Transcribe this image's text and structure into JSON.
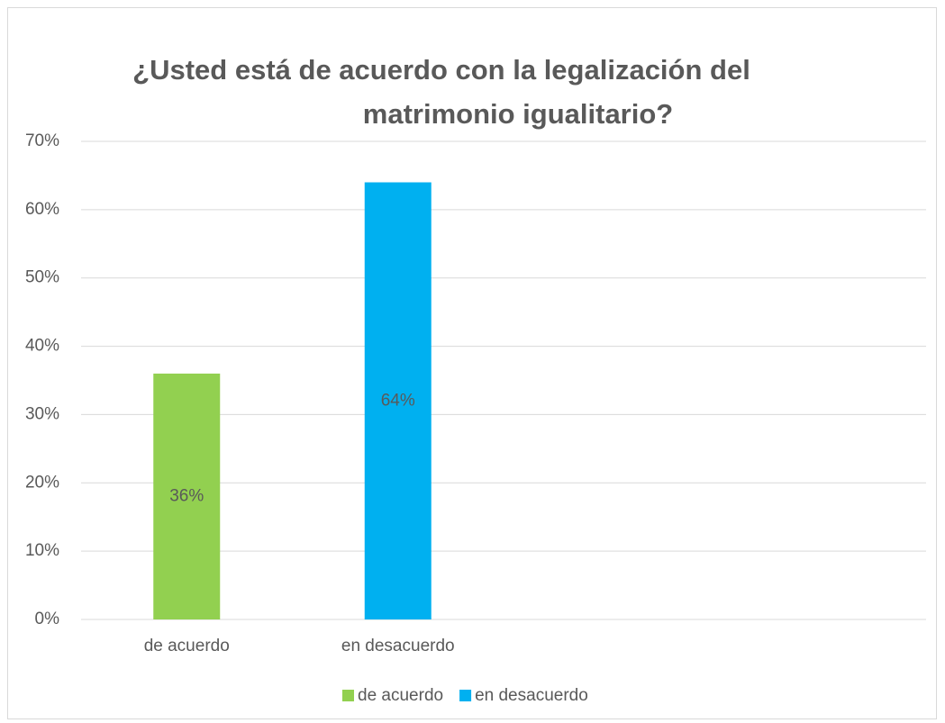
{
  "chart_data": {
    "type": "bar",
    "title": [
      "¿Usted está de acuerdo con la legalización del",
      "matrimonio igualitario?"
    ],
    "categories": [
      "de acuerdo",
      "en desacuerdo",
      null,
      null
    ],
    "series": [
      {
        "name": "de acuerdo",
        "color": "#92d050",
        "values": [
          36,
          null,
          null,
          null
        ],
        "value_labels": [
          "36%",
          null,
          null,
          null
        ]
      },
      {
        "name": "en desacuerdo",
        "color": "#00b0f0",
        "values": [
          null,
          64,
          null,
          null
        ],
        "value_labels": [
          null,
          "64%",
          null,
          null
        ]
      }
    ],
    "ylim": [
      0,
      70
    ],
    "yticks": [
      {
        "value": 0,
        "label": "0%"
      },
      {
        "value": 10,
        "label": "10%"
      },
      {
        "value": 20,
        "label": "20%"
      },
      {
        "value": 30,
        "label": "30%"
      },
      {
        "value": 40,
        "label": "40%"
      },
      {
        "value": 50,
        "label": "50%"
      },
      {
        "value": 60,
        "label": "60%"
      },
      {
        "value": 70,
        "label": "70%"
      }
    ],
    "grid": true,
    "legend": "bottom"
  }
}
